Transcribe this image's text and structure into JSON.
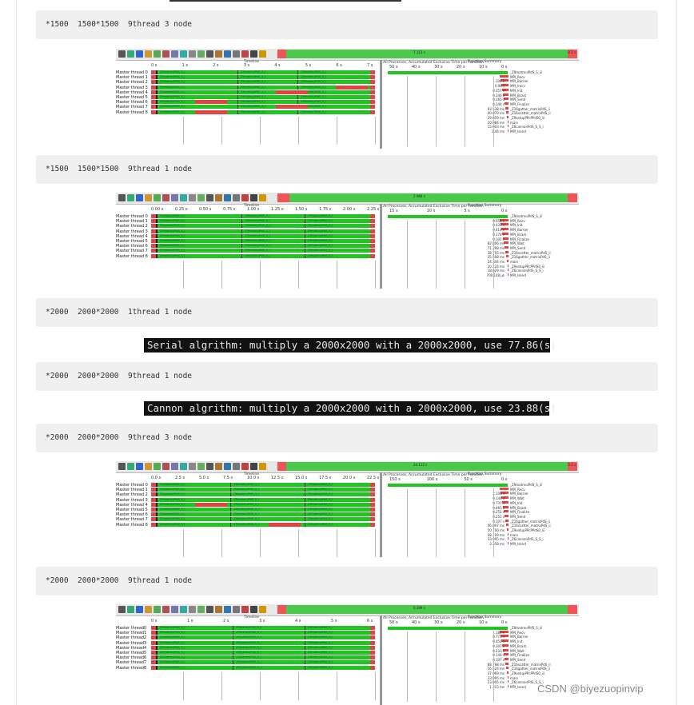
{
  "blocks": [
    {
      "code": "*1500  1500*1500  9thread 3 node"
    },
    {
      "code": "*1500  1500*1500  9thread 1 node"
    },
    {
      "code": "*2000  2000*2000  1thread 1 node"
    },
    {
      "code": "*2000  2000*2000  9thread 1 node"
    },
    {
      "code": "*2000  2000*2000  9thread 3 node"
    },
    {
      "code": "*2000  2000*2000  9thread 1 node"
    }
  ],
  "terminals": [
    "Serial algrithm: multiply a 2000x2000 with a 2000x2000, use 77.86(s)",
    "Cannon algrithm: multiply a 2000x2000 with a 2000x2000, use 23.88(s)"
  ],
  "screens": [
    {
      "overview_label": "7.113 s",
      "overview_right": "0.1 s",
      "timeline_title": "Timeline",
      "summary_title": "Function Summary",
      "panel_header": "All Processes, Accumulated Exclusive Time per Function",
      "ticks": [
        "0 s",
        "1 s",
        "2 s",
        "3 s",
        "4 s",
        "5 s",
        "6 s",
        "7 s"
      ],
      "fticks": [
        "50 s",
        "40 s",
        "30 s",
        "20 s",
        "10 s",
        "0 s"
      ],
      "threads": [
        "Master thread 0",
        "Master thread 1",
        "Master thread 2",
        "Master thread 3",
        "Master thread 4",
        "Master thread 5",
        "Master thread 6",
        "Master thread 7",
        "Master thread 8"
      ],
      "seg_label": "Z9matmulPdS_S_I",
      "functions": [
        {
          "value": "",
          "name": "_Z9matmulPdS_S_iii"
        },
        {
          "value": "",
          "name": "MPI_Recv"
        },
        {
          "value": "1.100 s",
          "name": "MPI_Barrier"
        },
        {
          "value": "0.98 s",
          "name": "MPI_Irecv"
        },
        {
          "value": "0.357 s",
          "name": "MPI_Init"
        },
        {
          "value": "0.246 s",
          "name": "MPI_Bcast"
        },
        {
          "value": "0.165 s",
          "name": "MPI_Send"
        },
        {
          "value": "0.144 s",
          "name": "MPI_Finalize"
        },
        {
          "value": "93.538 ms",
          "name": "_Z16gather_matrixPdS_ii"
        },
        {
          "value": "40.070 ms",
          "name": "_Z16scatter_matrixPdS_ii"
        },
        {
          "value": "29.659 ms",
          "name": "_Z9setupPPcPPdS0_iii"
        },
        {
          "value": "20.084 ms",
          "name": "main"
        },
        {
          "value": "15.603 ms",
          "name": "_Z6cannonPdS_S_S_i"
        },
        {
          "value": "1.46 ms",
          "name": "MPI_Isend"
        }
      ]
    },
    {
      "overview_label": "2.984 s",
      "overview_right": "",
      "timeline_title": "Timeline",
      "summary_title": "Function Summary",
      "panel_header": "All Processes, Accumulated Exclusive Time per Function",
      "ticks": [
        "0.00 s",
        "0.25 s",
        "0.50 s",
        "0.75 s",
        "1.00 s",
        "1.25 s",
        "1.50 s",
        "1.75 s",
        "2.00 s",
        "2.25 s"
      ],
      "fticks": [
        "15 s",
        "10 s",
        "5 s",
        "0 s"
      ],
      "threads": [
        "Master thread 0",
        "Master thread 1",
        "Master thread 2",
        "Master thread 3",
        "Master thread 4",
        "Master thread 5",
        "Master thread 6",
        "Master thread 7",
        "Master thread 8"
      ],
      "seg_label": "Z9matmulPdS_S_I",
      "functions": [
        {
          "value": "",
          "name": "_Z9matmulPdS_S_iii"
        },
        {
          "value": "0.654 s",
          "name": "MPI_Recv"
        },
        {
          "value": "0.433 s",
          "name": "MPI_Init"
        },
        {
          "value": "0.414 s",
          "name": "MPI_Barrier"
        },
        {
          "value": "0.178 s",
          "name": "MPI_Bcast"
        },
        {
          "value": "0.101 s",
          "name": "MPI_Finalize"
        },
        {
          "value": "82.806 ms",
          "name": "MPI_Wait"
        },
        {
          "value": "71.398 ms",
          "name": "MPI_Send"
        },
        {
          "value": "38.755 ms",
          "name": "_Z16scatter_matrixPdS_ii"
        },
        {
          "value": "35.508 ms",
          "name": "_Z16gather_matrixPdS_ii"
        },
        {
          "value": "24.344 ms",
          "name": "main"
        },
        {
          "value": "20.124 ms",
          "name": "_Z9setupPPcPPdS0_iii"
        },
        {
          "value": "18.629 ms",
          "name": "_Z6cannonPdS_S_S_i"
        },
        {
          "value": "700.148 µs",
          "name": "MPI_Isend"
        }
      ]
    },
    {
      "overview_label": "24.112 s",
      "overview_right": "0.1 s",
      "timeline_title": "Timeline",
      "summary_title": "Function Summary",
      "panel_header": "All Processes, Accumulated Exclusive Time per Function",
      "ticks": [
        "0.0 s",
        "2.5 s",
        "5.0 s",
        "7.5 s",
        "10.0 s",
        "12.5 s",
        "15.0 s",
        "17.5 s",
        "20.0 s",
        "22.5 s"
      ],
      "fticks": [
        "150 s",
        "100 s",
        "50 s",
        "0 s"
      ],
      "threads": [
        "Master thread 0",
        "Master thread 1",
        "Master thread 2",
        "Master thread 3",
        "Master thread 4",
        "Master thread 5",
        "Master thread 6",
        "Master thread 7",
        "Master thread 8"
      ],
      "seg_label": "Z9matmulPdS_S_I",
      "functions": [
        {
          "value": "",
          "name": "_Z9matmulPdS_S_iii"
        },
        {
          "value": "",
          "name": "MPI_Recv"
        },
        {
          "value": "2.108 s",
          "name": "MPI_Barrier"
        },
        {
          "value": "0.144 s",
          "name": "MPI_Wait"
        },
        {
          "value": "0.737 s",
          "name": "MPI_Init"
        },
        {
          "value": "0.465 s",
          "name": "MPI_Bcast"
        },
        {
          "value": "0.251 s",
          "name": "MPI_Finalize"
        },
        {
          "value": "0.251 s",
          "name": "MPI_Send"
        },
        {
          "value": "0.107 s",
          "name": "_Z16gather_matrixPdS_ii"
        },
        {
          "value": "46.007 ms",
          "name": "_Z16scatter_matrixPdS_ii"
        },
        {
          "value": "50.700 ms",
          "name": "_Z9setupPPcPPdS0_iii"
        },
        {
          "value": "38.109 ms",
          "name": "main"
        },
        {
          "value": "33.995 ms",
          "name": "_Z6cannonPdS_S_S_i"
        },
        {
          "value": "2.358 ms",
          "name": "MPI_Isend"
        }
      ]
    },
    {
      "overview_label": "6.399 s",
      "overview_right": "",
      "timeline_title": "Timeline",
      "summary_title": "Function Summary",
      "panel_header": "All Processes, Accumulated Exclusive Time per Function",
      "ticks": [
        "0 s",
        "1 s",
        "2 s",
        "3 s",
        "4 s",
        "5 s",
        "6 s"
      ],
      "fticks": [
        "50 s",
        "40 s",
        "30 s",
        "20 s",
        "10 s",
        "0 s"
      ],
      "threads": [
        "Master thread0",
        "Master thread1",
        "Master thread2",
        "Master thread3",
        "Master thread4",
        "Master thread5",
        "Master thread6",
        "Master thread7",
        "Master thread8"
      ],
      "seg_label": "Z9matmulPdS_S_I",
      "functions": [
        {
          "value": "",
          "name": "_Z9matmulPdS_S_iii"
        },
        {
          "value": "1.183 s",
          "name": "MPI_Recv"
        },
        {
          "value": "0.771 s",
          "name": "MPI_Barrier"
        },
        {
          "value": "0.451 s",
          "name": "MPI_Init"
        },
        {
          "value": "0.307 s",
          "name": "MPI_Bcast"
        },
        {
          "value": "0.233 s",
          "name": "MPI_Wait"
        },
        {
          "value": "0.144 s",
          "name": "MPI_Finalize"
        },
        {
          "value": "0.107 s",
          "name": "MPI_Send"
        },
        {
          "value": "68.798 ms",
          "name": "_Z16scatter_matrixPdS_ii"
        },
        {
          "value": "56.524 ms",
          "name": "_Z16gather_matrixPdS_ii"
        },
        {
          "value": "37.969 ms",
          "name": "_Z9setupPPcPPdS0_iii"
        },
        {
          "value": "33.995 ms",
          "name": "main"
        },
        {
          "value": "23.005 ms",
          "name": "_Z6cannonPdS_S_S_i"
        },
        {
          "value": "1.315 ms",
          "name": "MPI_Isend"
        }
      ]
    }
  ],
  "watermark": "CSDN @biyezuopinvip",
  "colors": {
    "green": "#22c422",
    "red": "#e14444",
    "code_bg": "#f0f0f0",
    "terminal_bg": "#111111"
  }
}
